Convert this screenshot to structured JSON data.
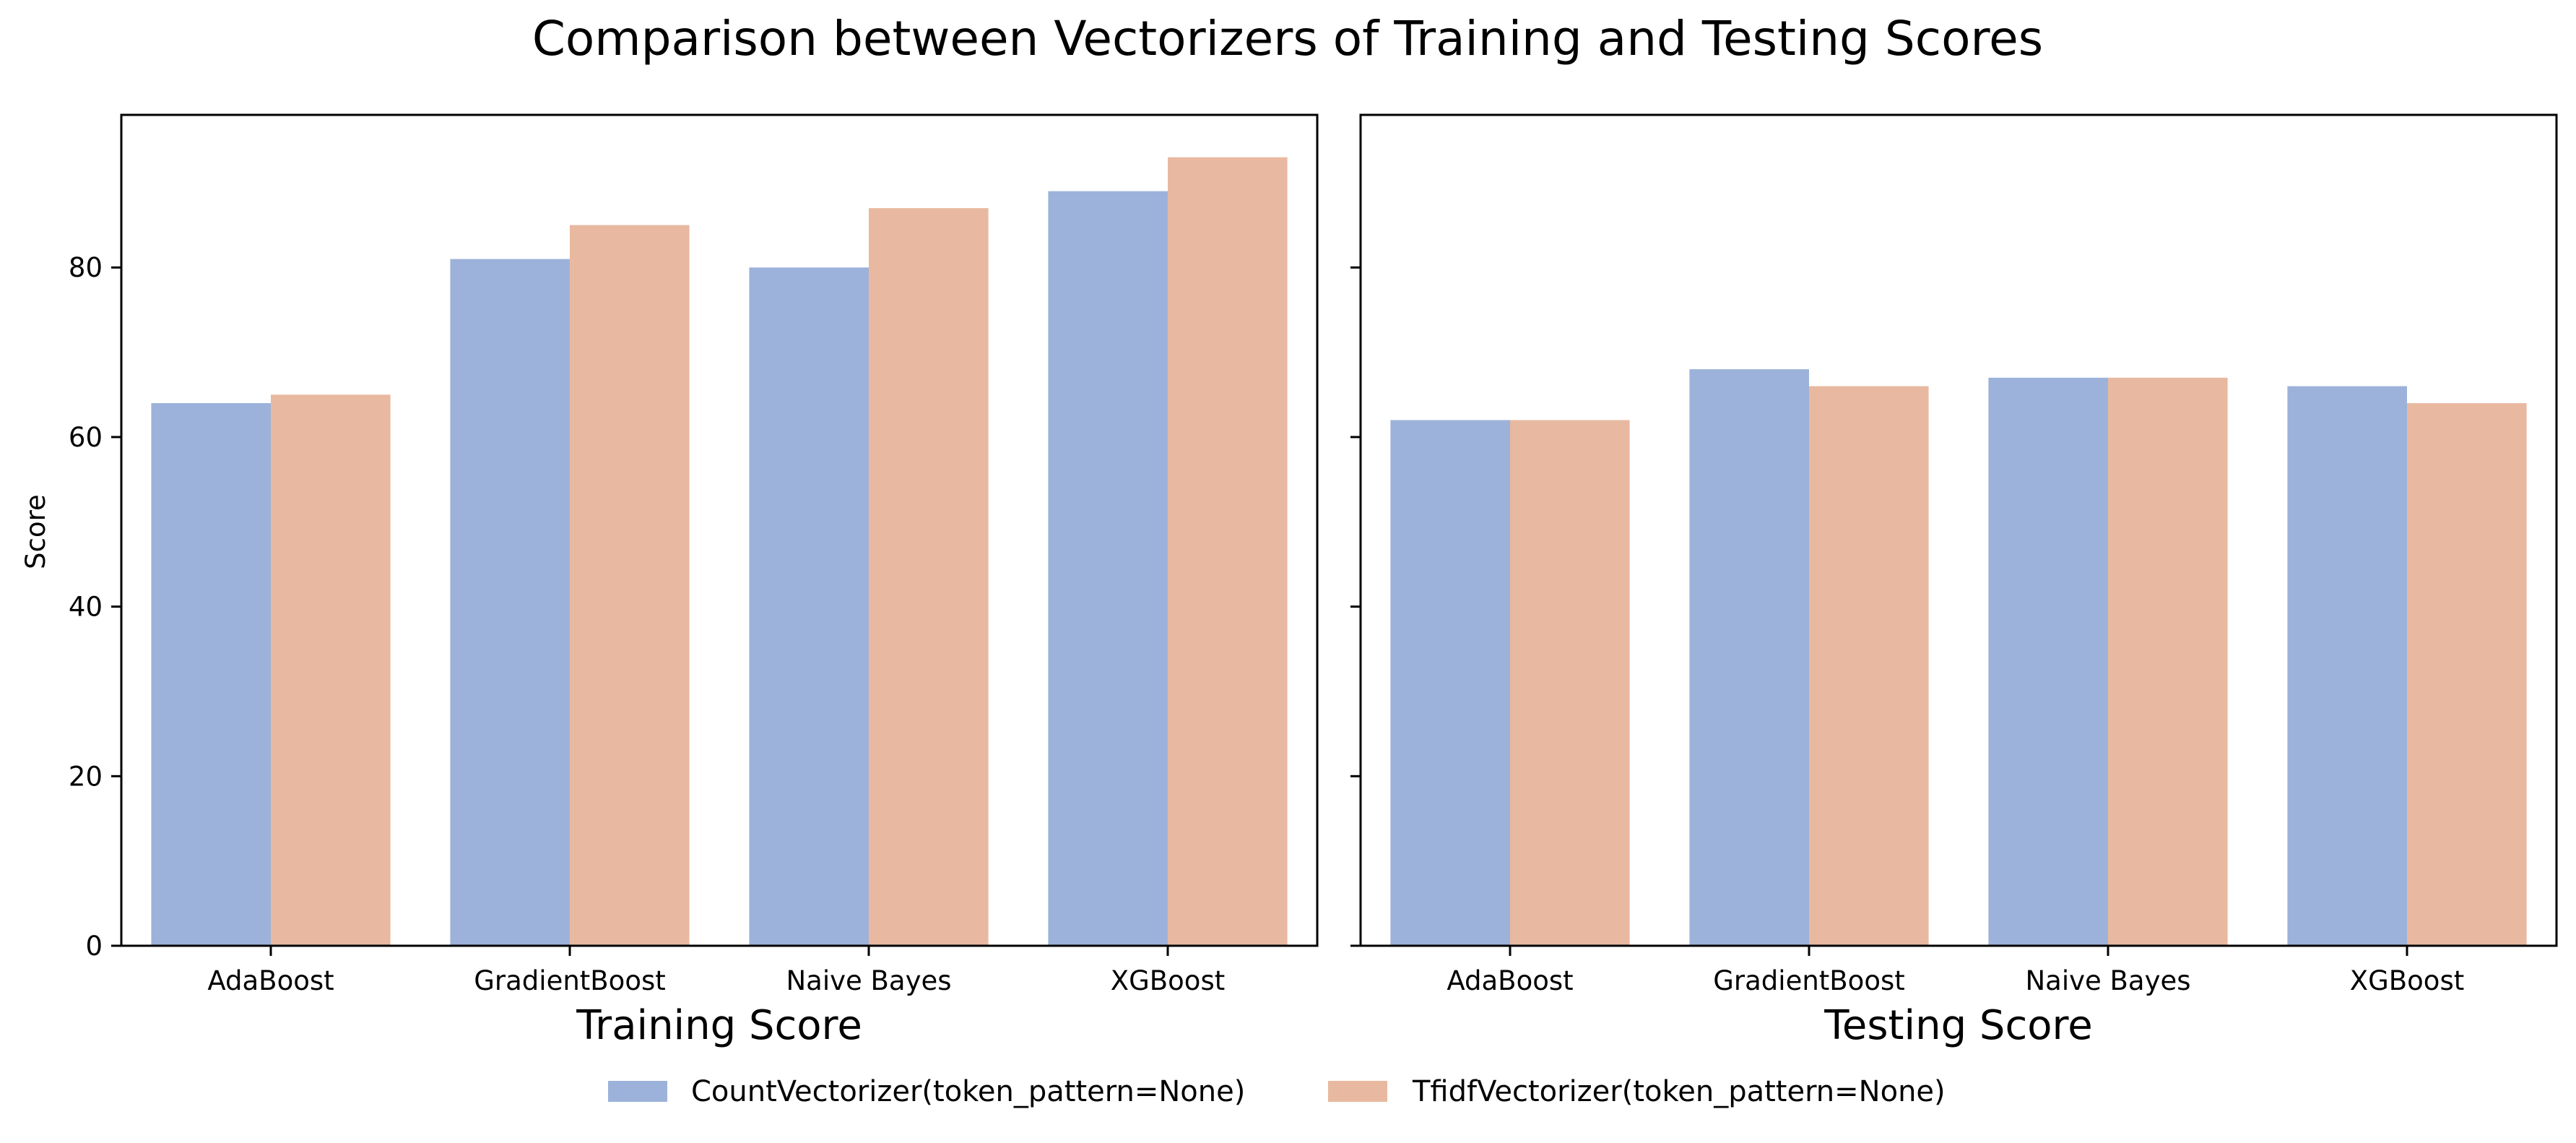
{
  "chart_data": {
    "type": "bar",
    "title": "Comparison between Vectorizers of Training and Testing Scores",
    "ylabel": "Score",
    "ylim": [
      0,
      98
    ],
    "yticks": [
      0,
      20,
      40,
      60,
      80
    ],
    "grid": false,
    "legend_position": "bottom-center",
    "series_legend": [
      {
        "name": "CountVectorizer(token_pattern=None)",
        "color": "#9db2da"
      },
      {
        "name": "TfidfVectorizer(token_pattern=None)",
        "color": "#e8b9a0"
      }
    ],
    "panels": [
      {
        "xlabel": "Training Score",
        "categories": [
          "AdaBoost",
          "GradientBoost",
          "Naive Bayes",
          "XGBoost"
        ],
        "series": [
          {
            "name": "CountVectorizer(token_pattern=None)",
            "values": [
              64,
              81,
              80,
              89
            ]
          },
          {
            "name": "TfidfVectorizer(token_pattern=None)",
            "values": [
              65,
              85,
              87,
              93
            ]
          }
        ]
      },
      {
        "xlabel": "Testing Score",
        "categories": [
          "AdaBoost",
          "GradientBoost",
          "Naive Bayes",
          "XGBoost"
        ],
        "series": [
          {
            "name": "CountVectorizer(token_pattern=None)",
            "values": [
              62,
              68,
              67,
              66
            ]
          },
          {
            "name": "TfidfVectorizer(token_pattern=None)",
            "values": [
              62,
              66,
              67,
              64
            ]
          }
        ]
      }
    ]
  }
}
